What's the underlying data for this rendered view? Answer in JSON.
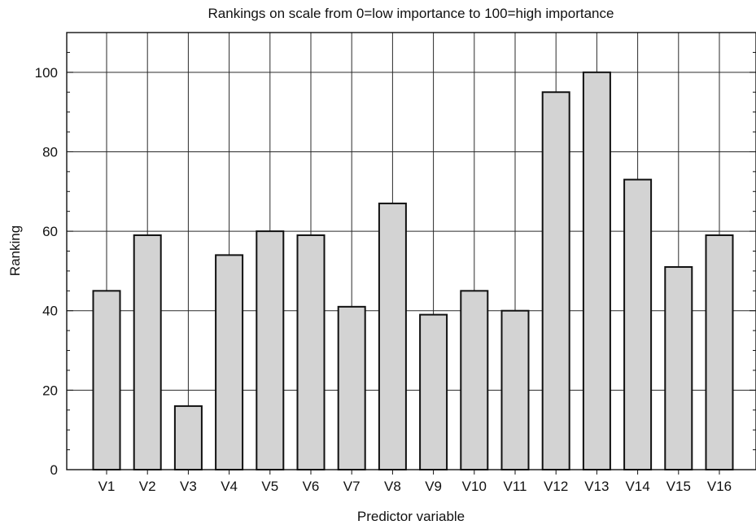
{
  "chart_data": {
    "type": "bar",
    "title": "Rankings on scale from 0=low importance to 100=high importance",
    "xlabel": "Predictor variable",
    "ylabel": "Ranking",
    "categories": [
      "V1",
      "V2",
      "V3",
      "V4",
      "V5",
      "V6",
      "V7",
      "V8",
      "V9",
      "V10",
      "V11",
      "V12",
      "V13",
      "V14",
      "V15",
      "V16"
    ],
    "values": [
      45,
      59,
      16,
      54,
      60,
      59,
      41,
      67,
      39,
      45,
      40,
      95,
      100,
      73,
      51,
      59
    ],
    "ylim": [
      0,
      110
    ],
    "yticks": [
      0,
      20,
      40,
      60,
      80,
      100
    ],
    "grid": true,
    "colors": {
      "bar_fill": "#d3d3d3",
      "bar_edge": "#111111",
      "grid": "#2a2a2a"
    }
  }
}
